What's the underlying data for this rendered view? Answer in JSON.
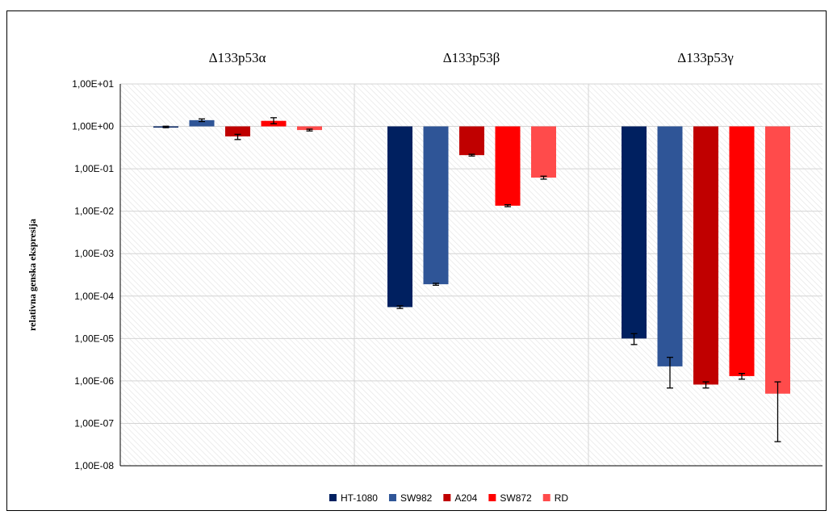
{
  "chart_data": {
    "type": "bar",
    "scale": "log10",
    "ylabel": "relativna genska ekspresija",
    "xlabel": "",
    "title": "",
    "ylim": [
      1e-08,
      10
    ],
    "yticks": [
      {
        "value": 10,
        "label": "1,00E+01"
      },
      {
        "value": 1,
        "label": "1,00E+00"
      },
      {
        "value": 0.1,
        "label": "1,00E-01"
      },
      {
        "value": 0.01,
        "label": "1,00E-02"
      },
      {
        "value": 0.001,
        "label": "1,00E-03"
      },
      {
        "value": 0.0001,
        "label": "1,00E-04"
      },
      {
        "value": 1e-05,
        "label": "1,00E-05"
      },
      {
        "value": 1e-06,
        "label": "1,00E-06"
      },
      {
        "value": 1e-07,
        "label": "1,00E-07"
      },
      {
        "value": 1e-08,
        "label": "1,00E-08"
      }
    ],
    "baseline": 1,
    "categories": [
      "Δ133p53α",
      "Δ133p53β",
      "Δ133p53γ"
    ],
    "grid": true,
    "legend_position": "bottom",
    "series": [
      {
        "name": "HT-1080",
        "color": "#002060",
        "values": [
          0.97,
          5.5e-05,
          1e-05
        ],
        "error_low": [
          0.93,
          5.1e-05,
          7.2e-06
        ],
        "error_high": [
          1.01,
          5.9e-05,
          1.3e-05
        ]
      },
      {
        "name": "SW982",
        "color": "#2F5597",
        "values": [
          1.4,
          0.00019,
          2.2e-06
        ],
        "error_low": [
          1.3,
          0.00018,
          6.8e-07
        ],
        "error_high": [
          1.5,
          0.0002,
          3.6e-06
        ]
      },
      {
        "name": "A204",
        "color": "#C00000",
        "values": [
          0.58,
          0.21,
          8.2e-07
        ],
        "error_low": [
          0.49,
          0.2,
          6.8e-07
        ],
        "error_high": [
          0.65,
          0.22,
          9.5e-07
        ]
      },
      {
        "name": "SW872",
        "color": "#FF0000",
        "values": [
          1.35,
          0.0135,
          1.3e-06
        ],
        "error_low": [
          1.15,
          0.0128,
          1.1e-06
        ],
        "error_high": [
          1.6,
          0.0142,
          1.5e-06
        ]
      },
      {
        "name": "RD",
        "color": "#FF4B4B",
        "values": [
          0.82,
          0.062,
          5e-07
        ],
        "error_low": [
          0.78,
          0.057,
          3.7e-08
        ],
        "error_high": [
          0.86,
          0.067,
          9.5e-07
        ]
      }
    ]
  }
}
